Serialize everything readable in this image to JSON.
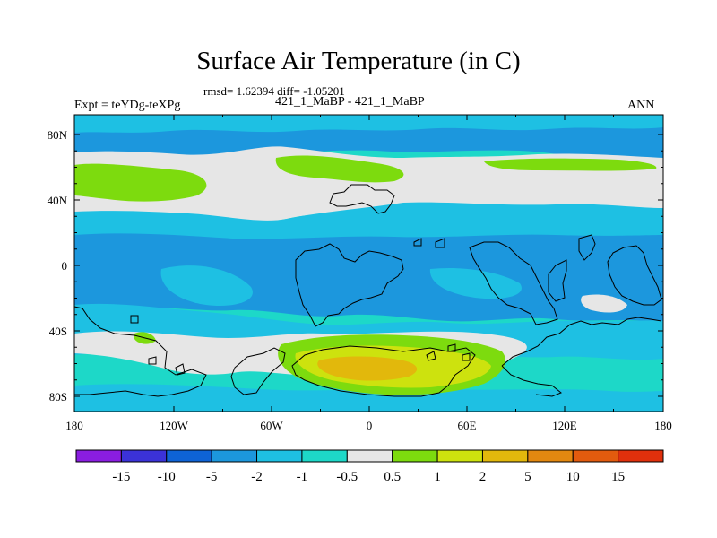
{
  "title": "Surface Air Temperature (in C)",
  "stats": "rmsd= 1.62394 diff= -1.05201",
  "subtitle": "421_1_MaBP - 421_1_MaBP",
  "expt": "Expt = teYDg-teXPg",
  "season": "ANN",
  "lat_ticks": [
    "80N",
    "40N",
    "0",
    "40S",
    "80S"
  ],
  "lon_ticks": [
    "180",
    "120W",
    "60W",
    "0",
    "60E",
    "120E",
    "180"
  ],
  "colorbar": {
    "labels": [
      "-15",
      "-10",
      "-5",
      "-2",
      "-1",
      "-0.5",
      "0.5",
      "1",
      "2",
      "5",
      "10",
      "15"
    ],
    "colors": [
      "#8a1de0",
      "#3b32d8",
      "#0e63d6",
      "#1c97dd",
      "#1ec0e3",
      "#1dd8c8",
      "#e6e6e6",
      "#7ddb0e",
      "#cde20e",
      "#e2b80c",
      "#e38810",
      "#e25b0e",
      "#e0300c"
    ]
  }
}
